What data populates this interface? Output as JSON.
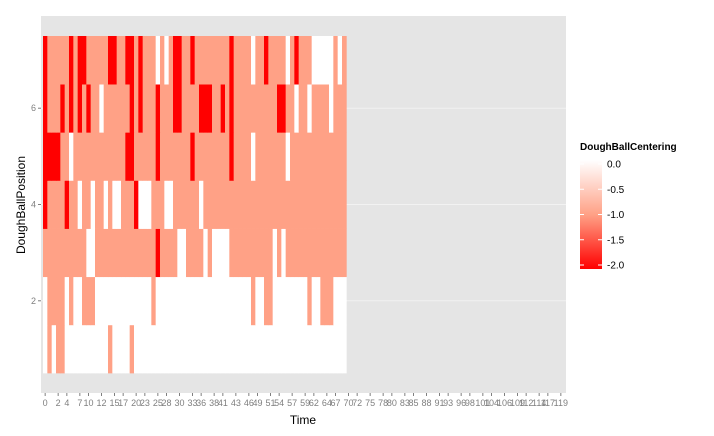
{
  "colors": {
    "panel_background": "#e5e5e5",
    "grid": "#f2f2f2",
    "value_0": "#ffffff",
    "value_-1": "#ffa186",
    "value_-2": "#ff0000"
  },
  "chart_data": {
    "type": "heatmap",
    "title": "",
    "xlabel": "Time",
    "ylabel": "DoughBallPosition",
    "legend_title": "DoughBallCentering",
    "legend_position": "right",
    "legend_ticks": [
      "0.0",
      "-0.5",
      "-1.0",
      "-1.5",
      "-2.0"
    ],
    "legend_values": [
      0,
      -0.5,
      -1.0,
      -1.5,
      -2.0
    ],
    "color_range": [
      -2,
      0
    ],
    "y_ticks": [
      "2",
      "4",
      "6"
    ],
    "y_tick_values": [
      2,
      4,
      6
    ],
    "y_range": [
      0.5,
      7.5
    ],
    "y_positions": [
      1,
      2,
      3,
      4,
      5,
      6,
      7
    ],
    "x_tick_labels": [
      "0",
      "2",
      "4",
      "7",
      "10",
      "12",
      "15",
      "17",
      "20",
      "23",
      "25",
      "28",
      "30",
      "33",
      "36",
      "38",
      "41",
      "43",
      "46",
      "49",
      "51",
      "54",
      "57",
      "59",
      "62",
      "64",
      "67",
      "70",
      "72",
      "75",
      "78",
      "80",
      "83",
      "85",
      "88",
      "91",
      "93",
      "96",
      "98",
      "101",
      "104",
      "106",
      "109",
      "112",
      "114",
      "117",
      "119"
    ],
    "x": [
      0,
      1,
      2,
      3,
      4,
      5,
      6,
      7,
      8,
      9,
      10,
      11,
      12,
      13,
      14,
      15,
      16,
      17,
      18,
      19,
      20,
      21,
      22,
      23,
      24,
      25,
      26,
      27,
      28,
      29,
      30,
      31,
      32,
      33,
      34,
      35,
      36,
      37,
      38,
      39,
      40,
      41,
      42,
      43,
      44,
      45,
      46,
      47,
      48,
      49,
      50,
      51,
      52,
      53,
      54,
      55,
      56,
      57,
      58,
      59,
      60,
      61,
      62,
      63,
      64,
      65,
      66,
      67,
      68,
      69,
      70,
      71,
      72,
      73,
      74,
      75,
      76,
      77,
      78,
      79,
      80,
      81,
      82,
      83,
      84,
      85,
      86,
      87,
      88,
      89,
      90,
      91,
      92,
      93,
      94,
      95,
      96,
      97,
      98,
      99,
      100,
      101,
      102,
      103,
      104,
      105,
      106,
      107,
      108,
      109,
      110,
      111,
      112,
      113,
      114,
      115,
      116,
      117,
      118,
      119
    ],
    "values_by_position": {
      "7": [
        -2,
        -1,
        -1,
        -1,
        -1,
        -1,
        -2,
        -1,
        -2,
        -2,
        -1,
        -1,
        -1,
        -1,
        -1,
        -2,
        -2,
        -1,
        -1,
        -2,
        -2,
        -1,
        -2,
        -1,
        -1,
        -1,
        0,
        -1,
        0,
        -1,
        -2,
        -2,
        -1,
        -1,
        -2,
        -1,
        -1,
        -1,
        -1,
        -1,
        -1,
        -1,
        -1,
        -2,
        -1,
        -1,
        -1,
        -1,
        0,
        -1,
        -1,
        -2,
        -1,
        -1,
        -1,
        -1,
        0,
        -1,
        -2,
        -1,
        -1,
        -1,
        0,
        0,
        0,
        0,
        0,
        -1,
        0,
        -1
      ],
      "6": [
        -2,
        -1,
        -1,
        -1,
        -2,
        -1,
        -2,
        -1,
        -2,
        -1,
        -2,
        -1,
        -1,
        0,
        -1,
        -1,
        -1,
        -1,
        -1,
        -1,
        -2,
        -1,
        -2,
        -1,
        -1,
        -1,
        -2,
        -1,
        -1,
        -1,
        -2,
        -2,
        -1,
        -1,
        -1,
        -1,
        -2,
        -2,
        -2,
        -1,
        -1,
        -2,
        -1,
        -2,
        -1,
        -1,
        -1,
        -1,
        -1,
        -1,
        -1,
        -1,
        -1,
        -1,
        -2,
        -2,
        -1,
        -1,
        0,
        -1,
        -1,
        0,
        -1,
        -1,
        -1,
        -1,
        0,
        -1,
        -1,
        -1
      ],
      "5": [
        -2,
        -2,
        -2,
        -2,
        -1,
        -1,
        0,
        -1,
        -1,
        -1,
        -1,
        -1,
        -1,
        -1,
        -1,
        -1,
        -1,
        -1,
        -1,
        -2,
        -2,
        -1,
        -1,
        -1,
        -1,
        -1,
        -2,
        -1,
        -1,
        -1,
        -1,
        -1,
        -1,
        -1,
        -2,
        -1,
        -1,
        -1,
        -1,
        -1,
        -1,
        -1,
        -1,
        -2,
        -1,
        -1,
        -1,
        -1,
        0,
        -1,
        -1,
        -1,
        -1,
        -1,
        -1,
        -1,
        0,
        -1,
        -1,
        -1,
        -1,
        -1,
        -1,
        -1,
        -1,
        -1,
        -1,
        -1,
        -1,
        -1
      ],
      "4": [
        -2,
        -1,
        -1,
        -1,
        -1,
        -2,
        -1,
        -1,
        0,
        -1,
        -1,
        0,
        -1,
        -1,
        0,
        -1,
        0,
        0,
        -1,
        -1,
        -1,
        -2,
        0,
        0,
        0,
        -1,
        -1,
        -1,
        0,
        0,
        -1,
        -1,
        -1,
        -1,
        -1,
        -1,
        0,
        -1,
        -1,
        -1,
        -1,
        -1,
        -1,
        -1,
        -1,
        -1,
        -1,
        -1,
        -1,
        -1,
        -1,
        -1,
        -1,
        -1,
        -1,
        -1,
        -1,
        -1,
        -1,
        -1,
        -1,
        -1,
        -1,
        -1,
        -1,
        -1,
        -1,
        -1,
        -1,
        -1
      ],
      "3": [
        -1,
        -1,
        -1,
        -1,
        -1,
        -1,
        -1,
        -1,
        -1,
        -1,
        0,
        0,
        -1,
        -1,
        -1,
        -1,
        -1,
        -1,
        -1,
        -1,
        -1,
        -1,
        -1,
        -1,
        -1,
        -1,
        -2,
        -1,
        -1,
        -1,
        -1,
        0,
        0,
        -1,
        -1,
        -1,
        -1,
        0,
        -1,
        0,
        0,
        0,
        0,
        -1,
        -1,
        -1,
        -1,
        -1,
        -1,
        -1,
        -1,
        -1,
        -1,
        0,
        -1,
        0,
        -1,
        -1,
        -1,
        -1,
        -1,
        -1,
        -1,
        -1,
        -1,
        -1,
        -1,
        -1,
        -1,
        -1
      ],
      "2": [
        0,
        -1,
        -1,
        -1,
        -1,
        0,
        -1,
        0,
        0,
        -1,
        -1,
        -1,
        0,
        0,
        0,
        0,
        0,
        0,
        0,
        0,
        0,
        0,
        0,
        0,
        0,
        -1,
        0,
        0,
        0,
        0,
        0,
        0,
        0,
        0,
        0,
        0,
        0,
        0,
        0,
        0,
        0,
        0,
        0,
        0,
        0,
        0,
        0,
        0,
        -1,
        0,
        0,
        -1,
        -1,
        0,
        0,
        0,
        0,
        0,
        0,
        0,
        0,
        -1,
        0,
        0,
        -1,
        -1,
        -1,
        0,
        0,
        0
      ],
      "1": [
        0,
        -1,
        0,
        -1,
        -1,
        0,
        0,
        0,
        0,
        0,
        0,
        0,
        0,
        0,
        0,
        -1,
        0,
        0,
        0,
        0,
        -1,
        0,
        0,
        0,
        0,
        0,
        0,
        0,
        0,
        0,
        0,
        0,
        0,
        0,
        0,
        0,
        0,
        0,
        0,
        0,
        0,
        0,
        0,
        0,
        0,
        0,
        0,
        0,
        0,
        0,
        0,
        0,
        0,
        0,
        0,
        0,
        0,
        0,
        0,
        0,
        0,
        0,
        0,
        0,
        0,
        0,
        0,
        0,
        0,
        0
      ]
    }
  }
}
